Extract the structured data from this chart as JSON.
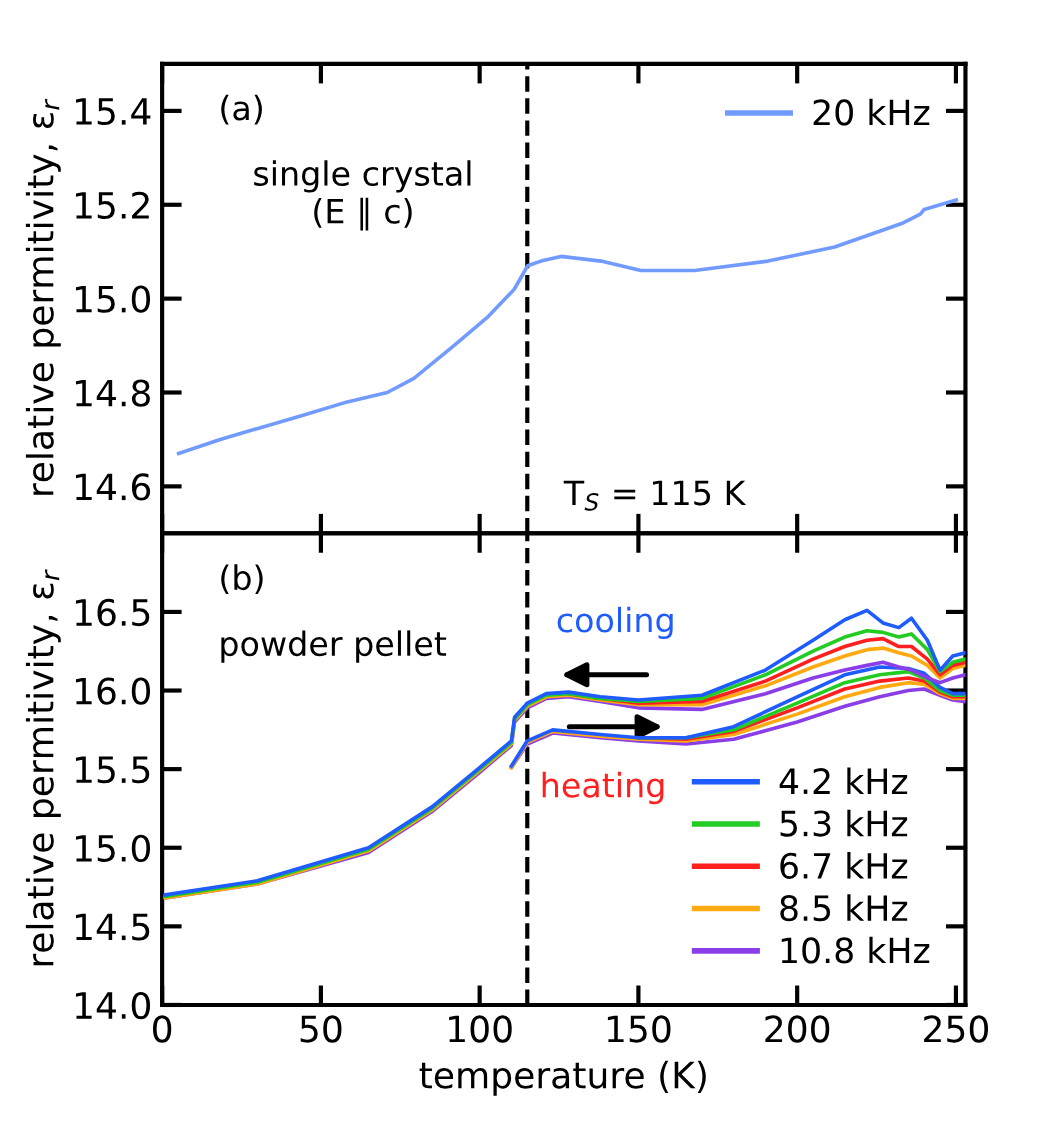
{
  "chart_data": [
    {
      "type": "line",
      "xlim": [
        0,
        253
      ],
      "xticks": [
        0,
        50,
        100,
        150,
        200,
        250
      ],
      "ylim": [
        14.5,
        15.5
      ],
      "yticks": [
        14.6,
        14.8,
        {
          "value": 15.0,
          "label": "15.0"
        },
        15.2,
        15.4
      ],
      "tick_labels": "y",
      "ylabel": "relative permitivity, ε$_{r}$",
      "grid": false,
      "legend": "top right",
      "line_style": "solid",
      "marker": "none",
      "annotations": [
        "(a)",
        "single crystal\n(E ∥ c)",
        "T$_{S}$ = 115 K"
      ],
      "ref_lines": [
        {
          "axis": "x",
          "value": 115,
          "color": "#000000",
          "line_style": "dashed"
        }
      ],
      "series": [
        {
          "name": "20 kHz",
          "color": "#729bff",
          "x": [
            5.2,
            18.3,
            43.6,
            58.3,
            70.9,
            79.3,
            91.9,
            102.4,
            110.9,
            115.1,
            119.3,
            125.6,
            138.2,
            150.8,
            167.7,
            190.8,
            211.8,
            232.9,
            238.8,
            240,
            250.1
          ],
          "values": [
            14.67,
            14.7,
            14.75,
            14.78,
            14.8,
            14.83,
            14.9,
            14.96,
            15.02,
            15.07,
            15.08,
            15.09,
            15.08,
            15.06,
            15.06,
            15.08,
            15.11,
            15.16,
            15.18,
            15.19,
            15.21
          ]
        }
      ]
    },
    {
      "type": "line",
      "xlim": [
        0,
        253
      ],
      "xticks": [
        0,
        50,
        100,
        150,
        200,
        250
      ],
      "ylim": [
        14.0,
        17.0
      ],
      "yticks": [
        {
          "value": 14.0,
          "label": "14.0"
        },
        14.5,
        {
          "value": 15.0,
          "label": "15.0"
        },
        15.5,
        {
          "value": 16.0,
          "label": "16.0"
        },
        16.5
      ],
      "xlabel": "temperature (K)",
      "ylabel": "relative permitivity, ε$_{r}$",
      "grid": false,
      "legend": "bottom right",
      "line_style": "solid",
      "marker": "none",
      "annotations": [
        "(b)",
        "powder pellet",
        "cooling",
        "heating"
      ],
      "ref_lines": [
        {
          "axis": "x",
          "value": 115,
          "color": "#000000",
          "line_style": "dashed"
        }
      ],
      "series": [
        {
          "name": "4.2 kHz",
          "color": "#1f5cff",
          "x": [
            1,
            30,
            65,
            85,
            100,
            110,
            111,
            115,
            121,
            128,
            138,
            150,
            170,
            190,
            205,
            215,
            222,
            227,
            232,
            236,
            241,
            245,
            249,
            253
          ],
          "values": [
            14.7,
            14.79,
            15.0,
            15.26,
            15.51,
            15.68,
            15.83,
            15.92,
            15.98,
            15.99,
            15.96,
            15.94,
            15.97,
            16.13,
            16.32,
            16.45,
            16.51,
            16.43,
            16.4,
            16.46,
            16.32,
            16.13,
            16.22,
            16.24
          ]
        },
        {
          "name": "5.3 kHz",
          "color": "#22cc22",
          "x": [
            1,
            30,
            65,
            85,
            100,
            110,
            111,
            115,
            121,
            128,
            138,
            150,
            170,
            190,
            205,
            215,
            222,
            227,
            232,
            236,
            241,
            245,
            249,
            253
          ],
          "values": [
            14.69,
            14.78,
            14.99,
            15.25,
            15.5,
            15.67,
            15.82,
            15.91,
            15.97,
            15.98,
            15.95,
            15.93,
            15.95,
            16.1,
            16.25,
            16.34,
            16.38,
            16.37,
            16.34,
            16.36,
            16.26,
            16.12,
            16.18,
            16.2
          ]
        },
        {
          "name": "6.7 kHz",
          "color": "#ff1f1f",
          "x": [
            128,
            138,
            150,
            170,
            190,
            205,
            215,
            222,
            227,
            232,
            236,
            241,
            245,
            249,
            253
          ],
          "values": [
            15.98,
            15.95,
            15.92,
            15.93,
            16.06,
            16.2,
            16.28,
            16.32,
            16.33,
            16.28,
            16.28,
            16.2,
            16.1,
            16.16,
            16.18
          ]
        },
        {
          "name": "8.5 kHz",
          "color": "#ffaa11",
          "x": [
            1,
            30,
            65,
            85,
            100,
            110,
            111,
            115,
            121,
            128,
            138,
            150,
            170,
            190,
            205,
            215,
            222,
            227,
            232,
            236,
            241,
            245,
            249,
            253
          ],
          "values": [
            14.68,
            14.77,
            14.98,
            15.24,
            15.49,
            15.66,
            15.81,
            15.9,
            15.96,
            15.97,
            15.94,
            15.91,
            15.91,
            16.03,
            16.15,
            16.22,
            16.26,
            16.27,
            16.24,
            16.22,
            16.16,
            16.08,
            16.14,
            16.16
          ]
        },
        {
          "name": "10.8 kHz",
          "color": "#8a3ee8",
          "x": [
            1,
            30,
            65,
            85,
            100,
            110,
            111,
            115,
            121,
            128,
            138,
            150,
            170,
            190,
            205,
            215,
            222,
            227,
            232,
            236,
            241,
            245,
            249,
            253
          ],
          "values": [
            14.68,
            14.77,
            14.97,
            15.23,
            15.48,
            15.65,
            15.8,
            15.89,
            15.95,
            15.96,
            15.93,
            15.89,
            15.88,
            15.98,
            16.08,
            16.13,
            16.16,
            16.18,
            16.15,
            16.13,
            16.08,
            16.05,
            16.08,
            16.1
          ]
        },
        {
          "color": "#1f5cff",
          "x": [
            110,
            115,
            123,
            138,
            150,
            165,
            180,
            200,
            215,
            226,
            235,
            240,
            245,
            249,
            253
          ],
          "values": [
            15.52,
            15.68,
            15.75,
            15.72,
            15.7,
            15.7,
            15.77,
            15.96,
            16.1,
            16.15,
            16.14,
            16.11,
            16.02,
            15.98,
            15.98
          ]
        },
        {
          "color": "#22cc22",
          "x": [
            150,
            165,
            180,
            200,
            215,
            226,
            235,
            240,
            245,
            249,
            253
          ],
          "values": [
            15.7,
            15.7,
            15.75,
            15.92,
            16.05,
            16.1,
            16.12,
            16.08,
            16.0,
            15.97,
            15.97
          ]
        },
        {
          "color": "#ff1f1f",
          "x": [
            150,
            165,
            180,
            200,
            215,
            226,
            235,
            240,
            245,
            249,
            253
          ],
          "values": [
            15.7,
            15.69,
            15.74,
            15.89,
            16.01,
            16.06,
            16.08,
            16.06,
            15.99,
            15.96,
            15.96
          ]
        },
        {
          "color": "#ffaa11",
          "x": [
            110,
            115,
            123,
            138,
            150,
            165,
            180,
            200,
            215,
            226,
            235,
            240,
            245,
            249,
            253
          ],
          "values": [
            15.51,
            15.67,
            15.74,
            15.71,
            15.69,
            15.68,
            15.72,
            15.85,
            15.96,
            16.02,
            16.05,
            16.04,
            15.98,
            15.95,
            15.95
          ]
        },
        {
          "color": "#8a3ee8",
          "x": [
            110,
            115,
            123,
            138,
            150,
            165,
            180,
            200,
            215,
            226,
            235,
            240,
            245,
            249,
            253
          ],
          "values": [
            15.51,
            15.66,
            15.73,
            15.7,
            15.68,
            15.66,
            15.69,
            15.8,
            15.9,
            15.96,
            16.0,
            16.01,
            15.97,
            15.94,
            15.93
          ]
        }
      ]
    }
  ]
}
